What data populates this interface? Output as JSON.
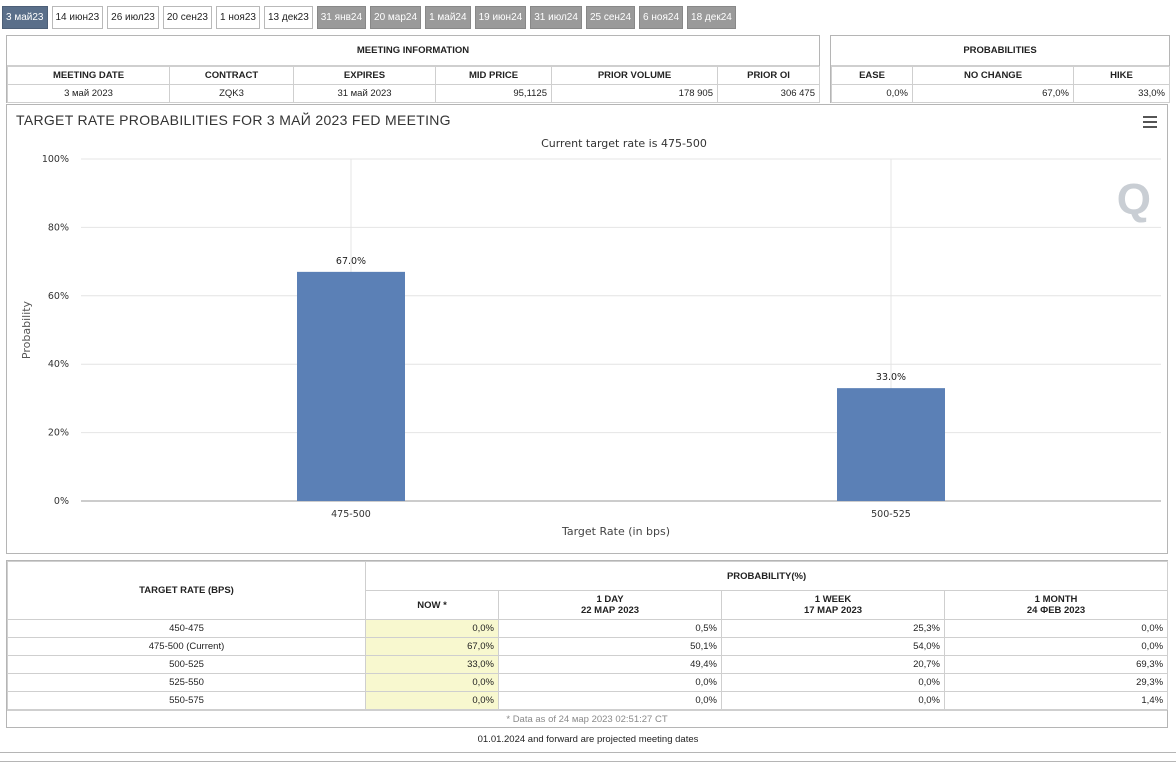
{
  "tabs": [
    {
      "label": "3 май23",
      "state": "active"
    },
    {
      "label": "14 июн23",
      "state": "normal"
    },
    {
      "label": "26 июл23",
      "state": "normal"
    },
    {
      "label": "20 сен23",
      "state": "normal"
    },
    {
      "label": "1 ноя23",
      "state": "normal"
    },
    {
      "label": "13 дек23",
      "state": "normal"
    },
    {
      "label": "31 янв24",
      "state": "dim"
    },
    {
      "label": "20 мар24",
      "state": "dim"
    },
    {
      "label": "1 май24",
      "state": "dim"
    },
    {
      "label": "19 июн24",
      "state": "dim"
    },
    {
      "label": "31 июл24",
      "state": "dim"
    },
    {
      "label": "25 сен24",
      "state": "dim"
    },
    {
      "label": "6 ноя24",
      "state": "dim"
    },
    {
      "label": "18 дек24",
      "state": "dim"
    }
  ],
  "meeting_info": {
    "title": "MEETING INFORMATION",
    "headers": [
      "MEETING DATE",
      "CONTRACT",
      "EXPIRES",
      "MID PRICE",
      "PRIOR VOLUME",
      "PRIOR OI"
    ],
    "values": [
      "3 май 2023",
      "ZQK3",
      "31 май 2023",
      "95,1125",
      "178 905",
      "306 475"
    ]
  },
  "probabilities": {
    "title": "PROBABILITIES",
    "headers": [
      "EASE",
      "NO CHANGE",
      "HIKE"
    ],
    "values": [
      "0,0%",
      "67,0%",
      "33,0%"
    ]
  },
  "chart": {
    "title": "TARGET RATE PROBABILITIES FOR 3 МАЙ 2023 FED MEETING",
    "subtitle": "Current target rate is 475-500",
    "logo": "Q"
  },
  "chart_data": {
    "type": "bar",
    "title": "TARGET RATE PROBABILITIES FOR 3 МАЙ 2023 FED MEETING",
    "subtitle": "Current target rate is 475-500",
    "xlabel": "Target Rate (in bps)",
    "ylabel": "Probability",
    "categories": [
      "475-500",
      "500-525"
    ],
    "values": [
      67.0,
      33.0
    ],
    "data_labels": [
      "67.0%",
      "33.0%"
    ],
    "ylim": [
      0,
      100
    ],
    "yticks": [
      0,
      20,
      40,
      60,
      80,
      100
    ],
    "ytick_labels": [
      "0%",
      "20%",
      "40%",
      "60%",
      "80%",
      "100%"
    ],
    "grid": true,
    "bar_color": "#5b80b6"
  },
  "prob_table": {
    "col_header": "TARGET RATE (BPS)",
    "group_header": "PROBABILITY(%)",
    "sub_headers": [
      {
        "line1": "NOW *",
        "line2": ""
      },
      {
        "line1": "1 DAY",
        "line2": "22 МАР 2023"
      },
      {
        "line1": "1 WEEK",
        "line2": "17 МАР 2023"
      },
      {
        "line1": "1 MONTH",
        "line2": "24 ФЕВ 2023"
      }
    ],
    "rows": [
      [
        "450-475",
        "0,0%",
        "0,5%",
        "25,3%",
        "0,0%"
      ],
      [
        "475-500 (Current)",
        "67,0%",
        "50,1%",
        "54,0%",
        "0,0%"
      ],
      [
        "500-525",
        "33,0%",
        "49,4%",
        "20,7%",
        "69,3%"
      ],
      [
        "525-550",
        "0,0%",
        "0,0%",
        "0,0%",
        "29,3%"
      ],
      [
        "550-575",
        "0,0%",
        "0,0%",
        "0,0%",
        "1,4%"
      ]
    ],
    "footnote": "* Data as of 24 мар 2023 02:51:27 CT"
  },
  "projected_note": "01.01.2024 and forward are projected meeting dates"
}
